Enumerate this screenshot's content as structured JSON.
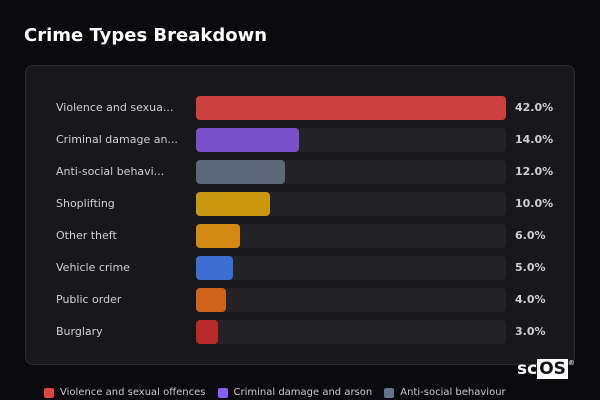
{
  "title": "Crime Types Breakdown",
  "chart_data": {
    "type": "bar",
    "orientation": "horizontal",
    "title": "Crime Types Breakdown",
    "categories": [
      "Violence and sexua...",
      "Criminal damage an...",
      "Anti-social behavi...",
      "Shoplifting",
      "Other theft",
      "Vehicle crime",
      "Public order",
      "Burglary"
    ],
    "values": [
      42.0,
      14.0,
      12.0,
      10.0,
      6.0,
      5.0,
      4.0,
      3.0
    ],
    "value_labels": [
      "42.0%",
      "14.0%",
      "12.0%",
      "10.0%",
      "6.0%",
      "5.0%",
      "4.0%",
      "3.0%"
    ],
    "colors": [
      "#cc4040",
      "#7750cc",
      "#5c6878",
      "#c9980f",
      "#d38a12",
      "#3a6fd0",
      "#d0641a",
      "#b82a2a"
    ],
    "xlim": [
      0,
      42
    ],
    "legend": [
      {
        "label": "Violence and sexual offences",
        "color": "#e04444"
      },
      {
        "label": "Criminal damage and arson",
        "color": "#8b5cf6"
      },
      {
        "label": "Anti-social behaviour",
        "color": "#64748b"
      }
    ],
    "legend_position": "bottom"
  },
  "logo": {
    "text1": "sc",
    "text2": "OS",
    "mark": "®"
  }
}
